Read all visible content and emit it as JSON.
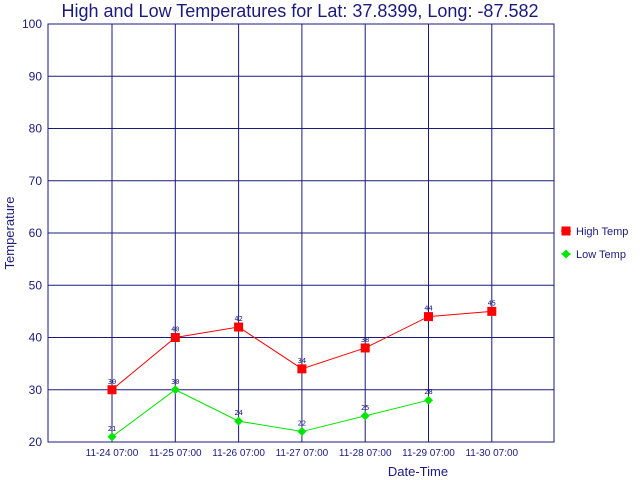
{
  "chart_data": {
    "type": "line",
    "title": "High and Low Temperatures for Lat: 37.8399, Long: -87.582",
    "xlabel": "Date-Time",
    "ylabel": "Temperature",
    "ylim": [
      20,
      100
    ],
    "yticks": [
      "20",
      "30",
      "40",
      "50",
      "60",
      "70",
      "80",
      "90",
      "100"
    ],
    "categories": [
      "11-24 07:00",
      "11-25 07:00",
      "11-26 07:00",
      "11-27 07:00",
      "11-28 07:00",
      "11-29 07:00",
      "11-30 07:00"
    ],
    "grid": true,
    "legend_position": "right",
    "series": [
      {
        "name": "High Temp",
        "color": "#ff0000",
        "marker": "square",
        "values": [
          30,
          40,
          42,
          34,
          38,
          44,
          45
        ]
      },
      {
        "name": "Low Temp",
        "color": "#00e600",
        "marker": "diamond",
        "values": [
          21,
          30,
          24,
          22,
          25,
          28,
          null
        ]
      }
    ]
  }
}
